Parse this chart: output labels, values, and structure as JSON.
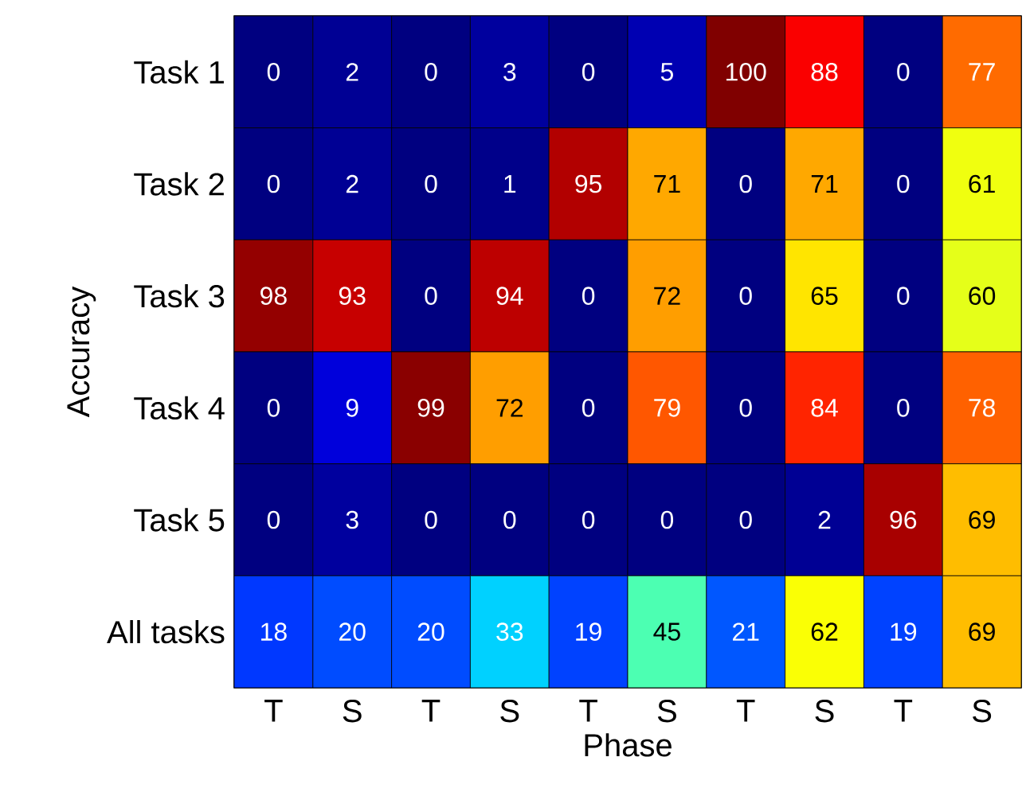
{
  "chart_data": {
    "type": "heatmap",
    "xlabel": "Phase",
    "data_labels": true,
    "ylabel": "Accuracy",
    "categories": [
      "T",
      "S",
      "T",
      "S",
      "T",
      "S",
      "T",
      "S",
      "T",
      "S"
    ],
    "y_categories": [
      "Task 1",
      "Task 2",
      "Task 3",
      "Task 4",
      "Task 5",
      "All tasks"
    ],
    "cells": [
      [
        0,
        2,
        0,
        3,
        0,
        5,
        100,
        88,
        0,
        77
      ],
      [
        0,
        2,
        0,
        1,
        95,
        71,
        0,
        71,
        0,
        61
      ],
      [
        98,
        93,
        0,
        94,
        0,
        72,
        0,
        65,
        0,
        60
      ],
      [
        0,
        9,
        99,
        72,
        0,
        79,
        0,
        84,
        0,
        78
      ],
      [
        0,
        3,
        0,
        0,
        0,
        0,
        0,
        2,
        96,
        69
      ],
      [
        18,
        20,
        20,
        33,
        19,
        45,
        21,
        62,
        19,
        69
      ]
    ]
  }
}
